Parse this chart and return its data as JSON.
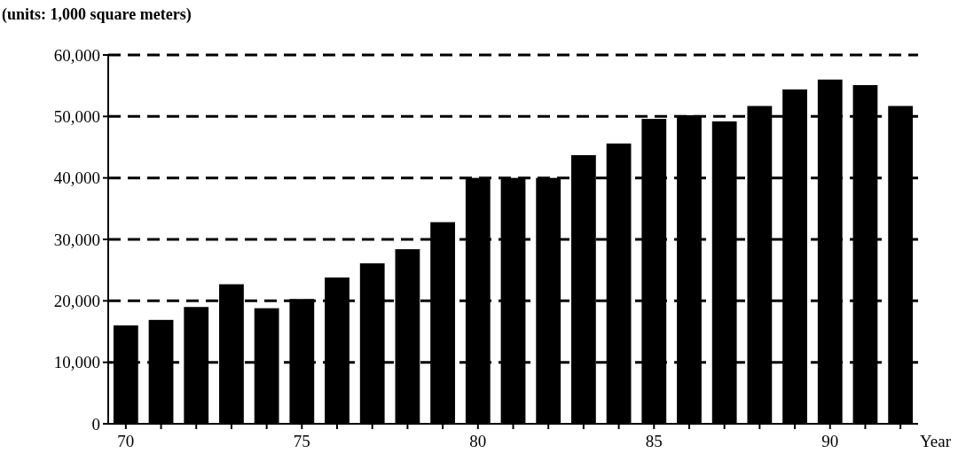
{
  "chart_data": {
    "type": "bar",
    "ylabel": "(units: 1,000 square meters)",
    "xlabel": "Year",
    "categories": [
      "70",
      null,
      null,
      null,
      null,
      "75",
      null,
      null,
      null,
      null,
      "80",
      null,
      null,
      null,
      null,
      "85",
      null,
      null,
      null,
      null,
      "90",
      null,
      null
    ],
    "values": [
      16000,
      16900,
      19000,
      22700,
      18800,
      20300,
      23800,
      26100,
      28400,
      32800,
      40000,
      40000,
      40000,
      43700,
      45600,
      49600,
      50200,
      49200,
      51700,
      54400,
      56000,
      55100,
      51700
    ],
    "color": "#000000",
    "ylim": [
      0,
      60000
    ],
    "yticks": [
      {
        "value": 0,
        "label": "0"
      },
      {
        "value": 10000,
        "label": "10,000"
      },
      {
        "value": 20000,
        "label": "20,000"
      },
      {
        "value": 30000,
        "label": "30,000"
      },
      {
        "value": 40000,
        "label": "40,000"
      },
      {
        "value": 50000,
        "label": "50,000"
      },
      {
        "value": 60000,
        "label": "60,000"
      }
    ],
    "grid": "y"
  }
}
